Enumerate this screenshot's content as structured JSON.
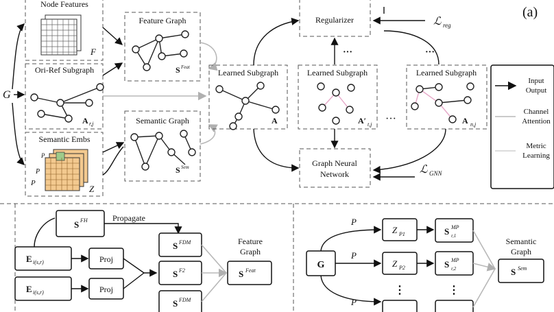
{
  "figure_label": "(a)",
  "input_symbol": "G",
  "top": {
    "node_features": {
      "title": "Node Features",
      "symbol": "F"
    },
    "ori_ref_subgraph": {
      "title": "Ori-Ref Subgraph",
      "symbol": "A",
      "subscript": "r,j"
    },
    "semantic_embs": {
      "title": "Semantic Embs",
      "symbol": "Z",
      "p1": "P",
      "p2": "P",
      "pk": "P"
    },
    "feature_graph": {
      "title": "Feature Graph",
      "symbol": "S",
      "superscript": "Feat"
    },
    "semantic_graph": {
      "title": "Semantic Graph",
      "symbol": "S",
      "superscript": "Sem"
    },
    "learned_subgraph_1": {
      "title": "Learned Subgraph",
      "symbol": "A"
    },
    "learned_subgraph_2": {
      "title": "Learned Subgraph",
      "symbol": "A′",
      "subscript": "t,j"
    },
    "learned_subgraph_3": {
      "title": "Learned Subgraph",
      "symbol": "A",
      "subscript": "n,j"
    },
    "regularizer": {
      "title": "Regularizer",
      "loss": "ℒ",
      "loss_sub": "reg"
    },
    "gnn": {
      "title_line1": "Graph Neural",
      "title_line2": "Network",
      "loss": "ℒ",
      "loss_sub": "GNN"
    },
    "dots": "···",
    "vdots": "⋮"
  },
  "legend": {
    "items": [
      {
        "label_line1": "Input",
        "label_line2": "Output",
        "color": "#111111"
      },
      {
        "label_line1": "Channel",
        "label_line2": "Attention",
        "color": "#b8b8b8"
      },
      {
        "label_line1": "Metric",
        "label_line2": "Learning",
        "color": "#d0d0d0"
      }
    ]
  },
  "bottom_left": {
    "s_top": {
      "symbol": "S",
      "superscript": "FH"
    },
    "propagate": "Propagate",
    "e1": {
      "symbol": "E",
      "subscript": "i(s,r)"
    },
    "e2": {
      "symbol": "E",
      "subscript": "i(s,r)"
    },
    "proj1": "Proj",
    "proj2": "Proj",
    "s_row1": {
      "symbol": "S",
      "superscript": "FDM"
    },
    "s_row2": {
      "symbol": "S",
      "superscript": "F2"
    },
    "s_row3": {
      "symbol": "S",
      "superscript": "FDM"
    },
    "feature_graph": {
      "line1": "Feature",
      "line2": "Graph",
      "symbol": "S",
      "superscript": "Feat"
    }
  },
  "bottom_right": {
    "g": "G",
    "p1": "P",
    "p2": "P",
    "pm": "P",
    "z1": {
      "symbol": "Z",
      "subscript": "P1"
    },
    "z2": {
      "symbol": "Z",
      "subscript": "P2"
    },
    "s1": {
      "symbol": "S",
      "superscript": "MP",
      "subscript": "r,1"
    },
    "s2": {
      "symbol": "S",
      "superscript": "MP",
      "subscript": "r,2"
    },
    "semantic_graph": {
      "line1": "Semantic",
      "line2": "Graph",
      "symbol": "S",
      "superscript": "Sem"
    }
  }
}
